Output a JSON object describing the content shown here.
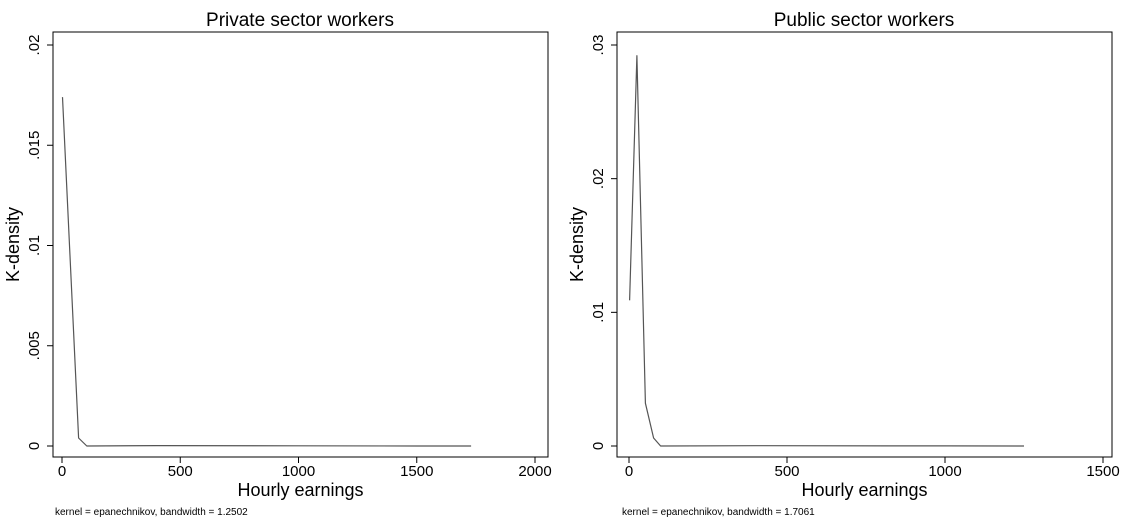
{
  "chart_data": [
    {
      "type": "line",
      "title": "Private sector workers",
      "xlabel": "Hourly earnings",
      "ylabel": "K-density",
      "note": "kernel = epanechnikov, bandwidth = 1.2502",
      "xlim": [
        0,
        2000
      ],
      "ylim": [
        0,
        0.02
      ],
      "xticks": [
        0,
        500,
        1000,
        1500,
        2000
      ],
      "xtick_labels": [
        "0",
        "500",
        "1000",
        "1500",
        "2000"
      ],
      "yticks": [
        0,
        0.005,
        0.01,
        0.015,
        0.02
      ],
      "ytick_labels": [
        "0",
        ".005",
        ".01",
        ".015",
        ".02"
      ],
      "grid": false,
      "line_color": "#555555",
      "series": [
        {
          "x": [
            2,
            70,
            105,
            400,
            1000,
            1500,
            1730
          ],
          "y": [
            0.0174,
            0.0004,
            0.0,
            2e-05,
            1e-05,
            0.0,
            0.0
          ]
        }
      ]
    },
    {
      "type": "line",
      "title": "Public sector workers",
      "xlabel": "Hourly earnings",
      "ylabel": "K-density",
      "note": "kernel = epanechnikov, bandwidth = 1.7061",
      "xlim": [
        0,
        1500
      ],
      "ylim": [
        0,
        0.03
      ],
      "xticks": [
        0,
        500,
        1000,
        1500
      ],
      "xtick_labels": [
        "0",
        "500",
        "1000",
        "1500"
      ],
      "yticks": [
        0,
        0.01,
        0.02,
        0.03
      ],
      "ytick_labels": [
        "0",
        ".01",
        ".02",
        ".03"
      ],
      "grid": false,
      "line_color": "#555555",
      "series": [
        {
          "x": [
            2,
            25,
            52,
            78,
            100,
            400,
            1000,
            1250
          ],
          "y": [
            0.0109,
            0.0292,
            0.0032,
            0.0006,
            0.0,
            2e-05,
            1e-05,
            0.0
          ]
        }
      ]
    }
  ]
}
